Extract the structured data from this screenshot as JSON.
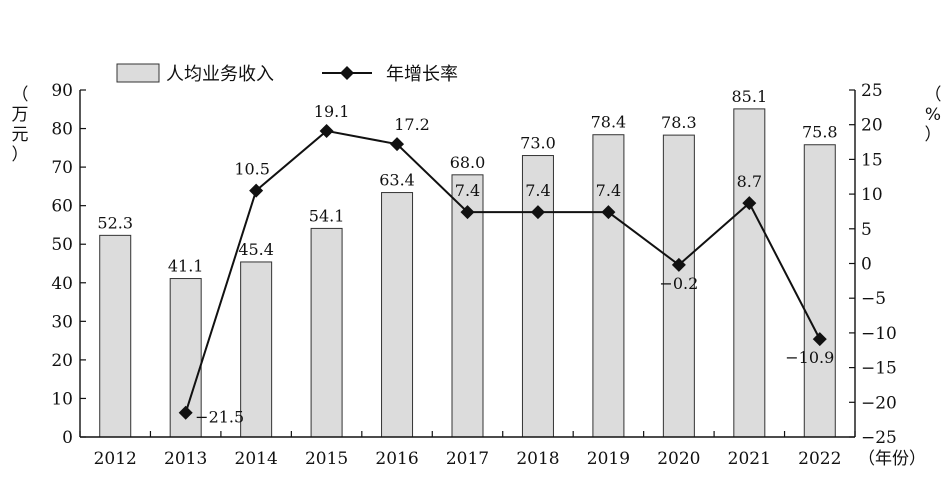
{
  "chart_data": {
    "type": "bar+line",
    "categories": [
      "2012",
      "2013",
      "2014",
      "2015",
      "2016",
      "2017",
      "2018",
      "2019",
      "2020",
      "2021",
      "2022"
    ],
    "x_unit_label": "（年份）",
    "series": [
      {
        "name": "人均业务收入",
        "type": "bar",
        "axis": "left",
        "values": [
          52.3,
          41.1,
          45.4,
          54.1,
          63.4,
          68.0,
          73.0,
          78.4,
          78.3,
          85.1,
          75.8
        ],
        "labels": [
          "52.3",
          "41.1",
          "45.4",
          "54.1",
          "63.4",
          "68.0",
          "73.0",
          "78.4",
          "78.3",
          "85.1",
          "75.8"
        ],
        "color": "#dcdcdc"
      },
      {
        "name": "年增长率",
        "type": "line",
        "axis": "right",
        "values": [
          null,
          -21.5,
          10.5,
          19.1,
          17.2,
          7.4,
          7.4,
          7.4,
          -0.2,
          8.7,
          -10.9
        ],
        "labels": [
          "",
          "−21.5",
          "10.5",
          "19.1",
          "17.2",
          "7.4",
          "7.4",
          "7.4",
          "−0.2",
          "8.7",
          "−10.9"
        ],
        "marker": "diamond",
        "color": "#111111"
      }
    ],
    "y_left": {
      "title_chars": [
        "（",
        "万",
        "元",
        "）"
      ],
      "ylim": [
        0,
        90
      ],
      "ticks": [
        0,
        10,
        20,
        30,
        40,
        50,
        60,
        70,
        80,
        90
      ],
      "tick_labels": [
        "0",
        "10",
        "20",
        "30",
        "40",
        "50",
        "60",
        "70",
        "80",
        "90"
      ]
    },
    "y_right": {
      "title_chars": [
        "（",
        "%",
        "）"
      ],
      "ylim": [
        -25,
        25
      ],
      "ticks": [
        -25,
        -20,
        -15,
        -10,
        -5,
        0,
        5,
        10,
        15,
        20,
        25
      ],
      "tick_labels": [
        "−25",
        "−20",
        "−15",
        "−10",
        "−5",
        "0",
        "5",
        "10",
        "15",
        "20",
        "25"
      ]
    },
    "legend": {
      "placement": "top-left"
    },
    "grid": false
  }
}
